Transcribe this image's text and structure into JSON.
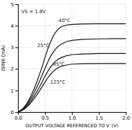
{
  "chart_data": {
    "type": "line",
    "xlabel": "OUTPUT VOLTAGE REFERENCED TO V⁻(V)",
    "ylabel": "ISINK (mA)",
    "xlim": [
      0.0,
      2.0
    ],
    "ylim": [
      0,
      5
    ],
    "xticks": [
      {
        "value": 0.0,
        "label": "0.0"
      },
      0.5,
      {
        "value": 1.0,
        "label": "1.0"
      },
      1.5,
      {
        "value": 2.0,
        "label": "2.0"
      }
    ],
    "yticks": [
      0,
      1,
      2,
      3,
      4,
      5
    ],
    "grid": true,
    "color": "#111111",
    "x": [
      0.0,
      0.04,
      0.08,
      0.12,
      0.16,
      0.2,
      0.25,
      0.3,
      0.35,
      0.4,
      0.45,
      0.5,
      0.55,
      0.6,
      0.65,
      0.7,
      0.75,
      0.8,
      0.9,
      1.0,
      1.2,
      1.5,
      1.8,
      2.0
    ],
    "series": [
      {
        "values": [
          0.0,
          0.06,
          0.14,
          0.24,
          0.38,
          0.55,
          0.8,
          1.08,
          1.4,
          1.75,
          2.12,
          2.52,
          2.9,
          3.22,
          3.5,
          3.7,
          3.85,
          3.95,
          4.03,
          4.06,
          4.08,
          4.09,
          4.09,
          4.09
        ]
      },
      {
        "values": [
          0.0,
          0.05,
          0.12,
          0.21,
          0.33,
          0.47,
          0.67,
          0.9,
          1.15,
          1.43,
          1.72,
          2.02,
          2.3,
          2.56,
          2.76,
          2.93,
          3.05,
          3.14,
          3.26,
          3.32,
          3.37,
          3.39,
          3.4,
          3.4
        ]
      },
      {
        "values": [
          0.0,
          0.04,
          0.09,
          0.17,
          0.27,
          0.39,
          0.55,
          0.74,
          0.94,
          1.17,
          1.4,
          1.64,
          1.87,
          2.07,
          2.23,
          2.36,
          2.45,
          2.52,
          2.61,
          2.66,
          2.69,
          2.71,
          2.71,
          2.71
        ]
      },
      {
        "values": [
          0.0,
          0.03,
          0.08,
          0.14,
          0.22,
          0.32,
          0.46,
          0.62,
          0.79,
          0.98,
          1.18,
          1.38,
          1.57,
          1.74,
          1.87,
          1.98,
          2.06,
          2.12,
          2.18,
          2.22,
          2.24,
          2.25,
          2.25,
          2.25
        ]
      }
    ],
    "annotations": [
      {
        "text": "VS = 1.8V",
        "x": 0.06,
        "y": 4.65
      },
      {
        "text": "-40°C",
        "x": 0.72,
        "y": 4.25
      },
      {
        "text": "25°C",
        "x": 0.36,
        "y": 3.1
      },
      {
        "text": "85°C",
        "x": 0.65,
        "y": 2.22
      },
      {
        "text": "125°C",
        "x": 0.6,
        "y": 1.38
      }
    ]
  }
}
